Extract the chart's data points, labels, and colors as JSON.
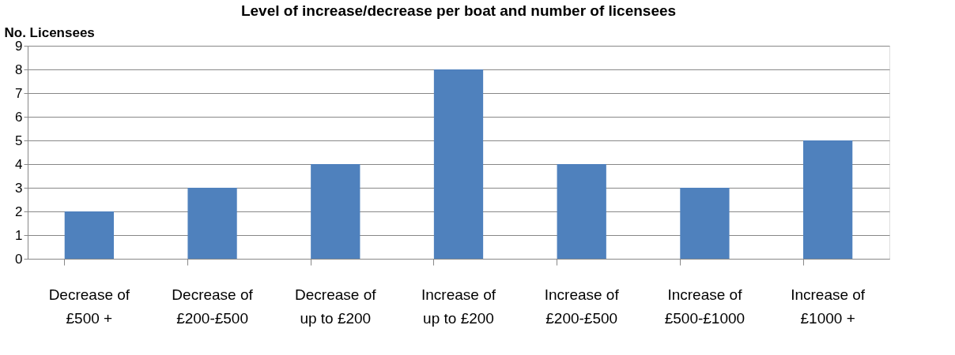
{
  "chart_data": {
    "type": "bar",
    "title": "Level of increase/decrease per boat and number of licensees",
    "ylabel": "No. Licensees",
    "categories": [
      "Decrease of £500 +",
      "Decrease of £200-£500",
      "Decrease of up to £200",
      "Increase of up to £200",
      "Increase of £200-£500",
      "Increase of £500-£1000",
      "Increase of £1000 +"
    ],
    "values": [
      2,
      3,
      4,
      8,
      4,
      3,
      5
    ],
    "color": "#4f81bd",
    "ylim": [
      0,
      9
    ],
    "yticks": [
      0,
      1,
      2,
      3,
      4,
      5,
      6,
      7,
      8,
      9
    ],
    "grid": "y"
  }
}
